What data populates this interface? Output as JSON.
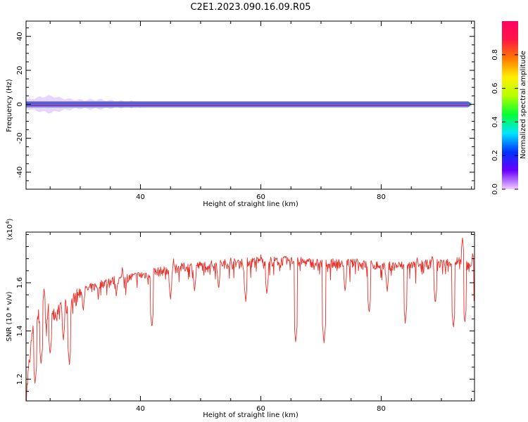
{
  "figure_title": "C2E1.2023.090.16.09.R05",
  "chart_data": [
    {
      "type": "heatmap",
      "xlabel": "Height of straight line (km)",
      "ylabel": "Frequency (Hz)",
      "xlim": [
        21,
        95.5
      ],
      "ylim": [
        -50,
        49
      ],
      "x_ticks": [
        40,
        60,
        80
      ],
      "y_ticks": [
        -40,
        -20,
        0,
        20,
        40
      ],
      "colorbar": {
        "label": "Normalized spectral amplitude",
        "range": [
          0,
          1
        ],
        "ticks": [
          "0.0",
          "0.2",
          "0.4",
          "0.6",
          "0.8"
        ],
        "tick_values": [
          0.0,
          0.2,
          0.4,
          0.6,
          0.8
        ],
        "colors": [
          "#f2ccff",
          "#6a00ff",
          "#0033ff",
          "#00e5ff",
          "#00ff33",
          "#b5ff00",
          "#ffee00",
          "#ff7a00",
          "#ff1744",
          "#ff0066"
        ]
      },
      "band_center_hz": 0,
      "band_halfwidth_hz": [
        [
          21,
          2.5
        ],
        [
          23,
          4
        ],
        [
          25,
          5
        ],
        [
          27,
          3.5
        ],
        [
          30,
          2.5
        ],
        [
          33,
          2.8
        ],
        [
          36,
          2
        ],
        [
          40,
          1.6
        ],
        [
          50,
          1.3
        ],
        [
          70,
          1.2
        ],
        [
          90,
          1.5
        ],
        [
          95,
          1.4
        ]
      ]
    },
    {
      "type": "line",
      "xlabel": "Height of straight line (km)",
      "ylabel": "SNR (10 * v/v)",
      "yscale_label": "(x10",
      "yscale_exponent": "4",
      "y_unit_multiplier": 10000,
      "xlim": [
        21,
        95.5
      ],
      "ylim": [
        1.11,
        1.81
      ],
      "x_ticks": [
        40,
        60,
        80
      ],
      "y_ticks": [
        1.2,
        1.4,
        1.6
      ],
      "series": [
        {
          "color": "#e8302a",
          "trend": [
            [
              21,
              1.12
            ],
            [
              21.5,
              1.26
            ],
            [
              22,
              1.38
            ],
            [
              23,
              1.46
            ],
            [
              24,
              1.44
            ],
            [
              25,
              1.5
            ],
            [
              26,
              1.47
            ],
            [
              27,
              1.49
            ],
            [
              28,
              1.5
            ],
            [
              29,
              1.53
            ],
            [
              30,
              1.56
            ],
            [
              32,
              1.58
            ],
            [
              34,
              1.6
            ],
            [
              36,
              1.61
            ],
            [
              38,
              1.62
            ],
            [
              40,
              1.63
            ],
            [
              42,
              1.64
            ],
            [
              44,
              1.65
            ],
            [
              46,
              1.66
            ],
            [
              50,
              1.67
            ],
            [
              55,
              1.68
            ],
            [
              60,
              1.69
            ],
            [
              65,
              1.69
            ],
            [
              70,
              1.68
            ],
            [
              75,
              1.68
            ],
            [
              80,
              1.67
            ],
            [
              85,
              1.67
            ],
            [
              90,
              1.68
            ],
            [
              93,
              1.69
            ],
            [
              95.5,
              1.65
            ]
          ],
          "dips": [
            [
              22.5,
              1.18
            ],
            [
              23.5,
              1.26
            ],
            [
              25.0,
              1.3
            ],
            [
              27.2,
              1.36
            ],
            [
              28.2,
              1.26
            ],
            [
              30.5,
              1.48
            ],
            [
              33.0,
              1.53
            ],
            [
              36.0,
              1.54
            ],
            [
              41.9,
              1.41
            ],
            [
              45.0,
              1.53
            ],
            [
              49.0,
              1.56
            ],
            [
              53.0,
              1.57
            ],
            [
              57.5,
              1.52
            ],
            [
              61.0,
              1.55
            ],
            [
              65.8,
              1.35
            ],
            [
              70.5,
              1.35
            ],
            [
              74.0,
              1.56
            ],
            [
              78.0,
              1.47
            ],
            [
              81.0,
              1.56
            ],
            [
              84.0,
              1.43
            ],
            [
              89.0,
              1.51
            ],
            [
              92.0,
              1.41
            ],
            [
              93.9,
              1.43
            ],
            [
              95.3,
              1.49
            ]
          ],
          "peaks": [
            [
              24.0,
              1.58
            ],
            [
              26.8,
              1.52
            ],
            [
              37.0,
              1.67
            ],
            [
              45.5,
              1.7
            ],
            [
              55.0,
              1.71
            ],
            [
              60.0,
              1.72
            ],
            [
              64.0,
              1.72
            ],
            [
              76.0,
              1.71
            ],
            [
              86.0,
              1.71
            ],
            [
              88.5,
              1.72
            ],
            [
              93.5,
              1.79
            ],
            [
              95.2,
              1.73
            ]
          ]
        }
      ]
    }
  ]
}
